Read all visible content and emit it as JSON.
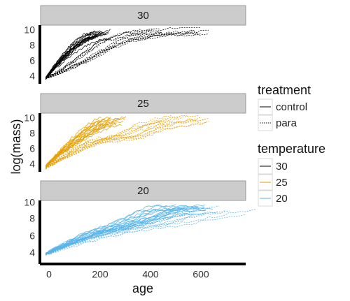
{
  "chart_data": {
    "type": "line",
    "xlabel": "age",
    "ylabel": "log(mass)",
    "xlim": [
      -20,
      780
    ],
    "xticks": [
      0,
      200,
      400,
      600
    ],
    "ylim": [
      3,
      10.4
    ],
    "yticks": [
      4,
      6,
      8,
      10
    ],
    "facet_by": "temperature",
    "facets": [
      {
        "label": "30",
        "color": "#000000",
        "x_max": 580
      },
      {
        "label": "25",
        "color": "#E69F00",
        "x_max": 580
      },
      {
        "label": "20",
        "color": "#56B4E9",
        "x_max": 750
      }
    ],
    "series": [
      {
        "facet": "30",
        "treatment": "control",
        "x": [
          0,
          30,
          80,
          140,
          200,
          240
        ],
        "y": [
          3.7,
          4.8,
          6.4,
          8.0,
          9.0,
          9.2
        ]
      },
      {
        "facet": "30",
        "treatment": "para",
        "x": [
          0,
          60,
          140,
          220,
          300,
          430,
          580
        ],
        "y": [
          3.7,
          4.5,
          5.8,
          7.3,
          8.6,
          9.5,
          9.8
        ]
      },
      {
        "facet": "25",
        "treatment": "control",
        "x": [
          0,
          50,
          120,
          200,
          260,
          300
        ],
        "y": [
          3.7,
          5.0,
          6.6,
          8.2,
          9.1,
          9.3
        ]
      },
      {
        "facet": "25",
        "treatment": "para",
        "x": [
          0,
          60,
          140,
          220,
          330,
          430,
          580
        ],
        "y": [
          3.5,
          4.6,
          6.0,
          7.0,
          7.5,
          8.8,
          9.8
        ]
      },
      {
        "facet": "20",
        "treatment": "control",
        "x": [
          0,
          100,
          200,
          300,
          400,
          500,
          600
        ],
        "y": [
          3.6,
          5.0,
          6.2,
          7.0,
          8.0,
          9.2,
          9.3
        ]
      },
      {
        "facet": "20",
        "treatment": "para",
        "x": [
          0,
          120,
          250,
          380,
          520,
          650,
          750
        ],
        "y": [
          3.5,
          4.8,
          6.0,
          6.8,
          7.6,
          8.6,
          9.0
        ]
      }
    ],
    "legend": {
      "placement": "right",
      "treatment": {
        "title": "treatment",
        "entries": [
          {
            "label": "control",
            "style": "solid"
          },
          {
            "label": "para",
            "style": "dotted"
          }
        ]
      },
      "temperature": {
        "title": "temperature",
        "entries": [
          {
            "label": "30",
            "color": "#000000"
          },
          {
            "label": "25",
            "color": "#E69F00"
          },
          {
            "label": "20",
            "color": "#56B4E9"
          }
        ]
      }
    },
    "grid": false
  }
}
